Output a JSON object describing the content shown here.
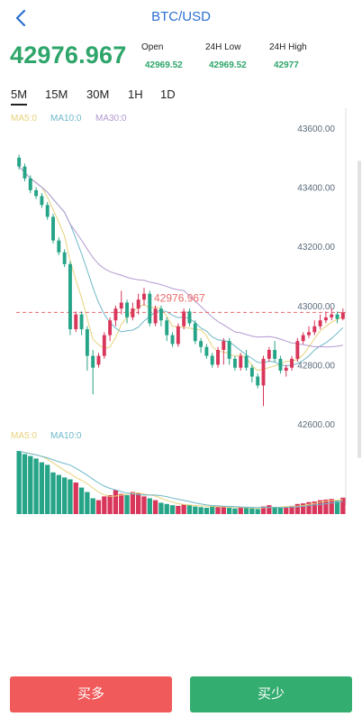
{
  "header": {
    "title": "BTC/USD"
  },
  "ticker": {
    "price": "42976.967",
    "stats": [
      {
        "label": "Open",
        "value": "42969.52"
      },
      {
        "label": "24H Low",
        "value": "42969.52"
      },
      {
        "label": "24H High",
        "value": "42977"
      }
    ]
  },
  "tabs": [
    "5M",
    "15M",
    "30M",
    "1H",
    "1D"
  ],
  "active_tab": "5M",
  "indicators": {
    "main": [
      {
        "label": "MA5:0",
        "color": "#e6d27a"
      },
      {
        "label": "MA10:0",
        "color": "#6fb8c9"
      },
      {
        "label": "MA30:0",
        "color": "#b49ad0"
      }
    ],
    "volume": [
      {
        "label": "MA5:0",
        "color": "#e6d27a"
      },
      {
        "label": "MA10:0",
        "color": "#6fb8c9"
      }
    ]
  },
  "colors": {
    "up": "#d9365b",
    "down": "#26a487",
    "price_line": "#e86a6a"
  },
  "actions": {
    "buy_long": "买多",
    "buy_short": "买少"
  },
  "chart_data": {
    "type": "candlestick",
    "y_ticks": [
      "43600.00",
      "43400.00",
      "43200.00",
      "43000.00",
      "42800.00",
      "42600.00"
    ],
    "ylim": [
      42600,
      43600
    ],
    "current_price": 42976.967,
    "current_price_label": "42976.967",
    "candles": [
      [
        43500,
        43470,
        43510,
        43460
      ],
      [
        43470,
        43430,
        43480,
        43420
      ],
      [
        43430,
        43390,
        43440,
        43380
      ],
      [
        43390,
        43370,
        43400,
        43360
      ],
      [
        43370,
        43340,
        43380,
        43330
      ],
      [
        43340,
        43300,
        43350,
        43290
      ],
      [
        43300,
        43220,
        43310,
        43210
      ],
      [
        43220,
        43180,
        43230,
        43170
      ],
      [
        43180,
        43140,
        43190,
        43130
      ],
      [
        43140,
        42920,
        43150,
        42900
      ],
      [
        42920,
        42970,
        42980,
        42910
      ],
      [
        42970,
        42920,
        42980,
        42900
      ],
      [
        42920,
        42830,
        42930,
        42780
      ],
      [
        42830,
        42790,
        42850,
        42700
      ],
      [
        42800,
        42830,
        42840,
        42790
      ],
      [
        42830,
        42900,
        42910,
        42820
      ],
      [
        42900,
        42950,
        42960,
        42880
      ],
      [
        42950,
        42990,
        43000,
        42930
      ],
      [
        42990,
        43010,
        43050,
        42970
      ],
      [
        43010,
        42960,
        43020,
        42940
      ],
      [
        42960,
        42990,
        43010,
        42950
      ],
      [
        42990,
        43020,
        43040,
        42970
      ],
      [
        43020,
        43040,
        43060,
        43000
      ],
      [
        43040,
        42940,
        43050,
        42930
      ],
      [
        42940,
        42990,
        43000,
        42930
      ],
      [
        42990,
        42950,
        43000,
        42930
      ],
      [
        42950,
        42900,
        42960,
        42880
      ],
      [
        42900,
        42870,
        42910,
        42860
      ],
      [
        42870,
        42930,
        42940,
        42860
      ],
      [
        42930,
        42980,
        42990,
        42920
      ],
      [
        42980,
        42940,
        42990,
        42930
      ],
      [
        42940,
        42880,
        42950,
        42870
      ],
      [
        42880,
        42860,
        42890,
        42840
      ],
      [
        42860,
        42830,
        42870,
        42820
      ],
      [
        42830,
        42800,
        42840,
        42790
      ],
      [
        42800,
        42850,
        42860,
        42790
      ],
      [
        42850,
        42880,
        42890,
        42800
      ],
      [
        42880,
        42820,
        42890,
        42800
      ],
      [
        42820,
        42790,
        42830,
        42780
      ],
      [
        42790,
        42830,
        42840,
        42780
      ],
      [
        42830,
        42790,
        42850,
        42780
      ],
      [
        42790,
        42760,
        42800,
        42740
      ],
      [
        42760,
        42730,
        42770,
        42720
      ],
      [
        42730,
        42820,
        42830,
        42660
      ],
      [
        42820,
        42850,
        42860,
        42810
      ],
      [
        42850,
        42820,
        42880,
        42810
      ],
      [
        42820,
        42780,
        42830,
        42770
      ],
      [
        42780,
        42790,
        42800,
        42760
      ],
      [
        42790,
        42820,
        42830,
        42780
      ],
      [
        42820,
        42880,
        42890,
        42810
      ],
      [
        42880,
        42900,
        42910,
        42870
      ],
      [
        42900,
        42910,
        42930,
        42890
      ],
      [
        42910,
        42930,
        42950,
        42900
      ],
      [
        42930,
        42950,
        42970,
        42920
      ],
      [
        42950,
        42960,
        42980,
        42940
      ],
      [
        42960,
        42970,
        42990,
        42950
      ],
      [
        42970,
        42955,
        42980,
        42940
      ],
      [
        42955,
        42977,
        42990,
        42950
      ]
    ],
    "volumes": [
      100,
      95,
      92,
      88,
      82,
      78,
      66,
      62,
      58,
      55,
      50,
      42,
      35,
      25,
      22,
      28,
      30,
      38,
      32,
      30,
      35,
      33,
      28,
      25,
      22,
      18,
      16,
      14,
      13,
      15,
      14,
      12,
      11,
      10,
      13,
      12,
      11,
      10,
      9,
      11,
      10,
      9,
      8,
      12,
      14,
      11,
      10,
      12,
      13,
      16,
      17,
      19,
      20,
      22,
      23,
      24,
      21,
      26
    ]
  }
}
